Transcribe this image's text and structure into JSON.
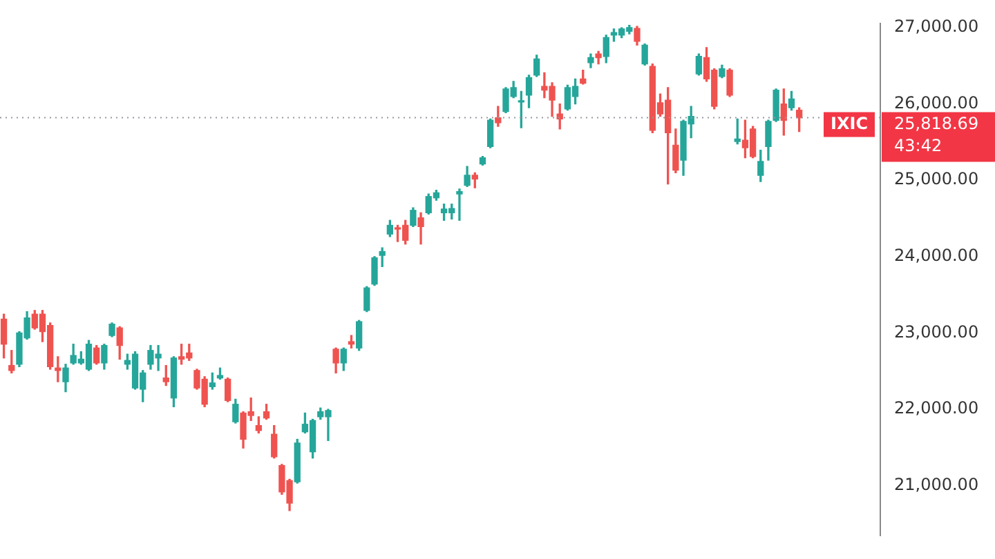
{
  "chart_data": {
    "type": "candlestick",
    "categories": [
      null,
      null,
      null,
      null,
      null,
      null,
      null,
      null,
      null,
      null,
      null,
      null,
      null,
      null,
      null,
      null,
      null,
      null,
      null,
      null,
      null,
      null,
      null,
      null,
      null,
      null,
      null,
      null,
      null,
      null,
      null,
      null,
      null,
      null,
      null,
      null,
      null,
      null,
      null,
      null,
      null,
      null,
      null,
      null,
      null,
      null,
      null,
      null,
      null,
      null,
      null,
      null,
      null,
      null,
      null,
      null,
      null,
      null,
      null,
      null,
      null,
      null,
      null,
      null,
      null,
      null,
      null,
      null,
      null,
      null,
      null,
      null,
      null,
      null,
      null,
      null,
      null,
      null,
      null,
      null,
      null,
      null,
      null,
      null,
      null,
      null,
      null,
      null,
      null,
      null,
      null,
      null,
      null,
      null,
      null,
      null,
      null,
      null,
      null,
      null,
      null,
      null,
      null,
      null,
      null,
      null,
      null,
      null,
      null,
      null,
      null,
      null,
      null,
      null
    ],
    "ohlc": [
      [
        23181,
        23246,
        22672,
        22853
      ],
      [
        22574,
        22771,
        22476,
        22508
      ],
      [
        22590,
        23017,
        22558,
        23000
      ],
      [
        22935,
        23279,
        22918,
        23197
      ],
      [
        23246,
        23295,
        23049,
        23066
      ],
      [
        23246,
        23295,
        22886,
        23017
      ],
      [
        23098,
        23131,
        22525,
        22558
      ],
      [
        22541,
        22689,
        22361,
        22508
      ],
      [
        22361,
        22590,
        22230,
        22541
      ],
      [
        22607,
        22853,
        22590,
        22705
      ],
      [
        22607,
        22754,
        22590,
        22656
      ],
      [
        22525,
        22902,
        22508,
        22853
      ],
      [
        22803,
        22836,
        22590,
        22607
      ],
      [
        22607,
        22853,
        22525,
        22836
      ],
      [
        22967,
        23131,
        22951,
        23115
      ],
      [
        23066,
        23082,
        22656,
        22836
      ],
      [
        22590,
        22722,
        22525,
        22640
      ],
      [
        22279,
        22754,
        22263,
        22722
      ],
      [
        22263,
        22508,
        22099,
        22476
      ],
      [
        22590,
        22836,
        22525,
        22771
      ],
      [
        22672,
        22836,
        22508,
        22722
      ],
      [
        22410,
        22574,
        22312,
        22361
      ],
      [
        22148,
        22689,
        22033,
        22672
      ],
      [
        22689,
        22853,
        22590,
        22656
      ],
      [
        22738,
        22853,
        22640,
        22672
      ],
      [
        22508,
        22525,
        22263,
        22279
      ],
      [
        22394,
        22427,
        22033,
        22066
      ],
      [
        22296,
        22476,
        22263,
        22345
      ],
      [
        22410,
        22541,
        22394,
        22443
      ],
      [
        22394,
        22410,
        22099,
        22115
      ],
      [
        21837,
        22132,
        21820,
        22066
      ],
      [
        21951,
        21968,
        21492,
        21607
      ],
      [
        21968,
        22148,
        21853,
        21919
      ],
      [
        21787,
        21902,
        21689,
        21722
      ],
      [
        21968,
        22066,
        21869,
        21886
      ],
      [
        21673,
        21787,
        21361,
        21378
      ],
      [
        21263,
        21279,
        20886,
        20918
      ],
      [
        21066,
        21083,
        20673,
        20771
      ],
      [
        21050,
        21607,
        21033,
        21558
      ],
      [
        21705,
        21951,
        21689,
        21804
      ],
      [
        21443,
        21869,
        21361,
        21853
      ],
      [
        21902,
        22017,
        21869,
        21968
      ],
      [
        21902,
        22000,
        21591,
        21984
      ],
      [
        22787,
        22803,
        22476,
        22607
      ],
      [
        22607,
        22803,
        22508,
        22787
      ],
      [
        22886,
        22967,
        22803,
        22853
      ],
      [
        22803,
        23164,
        22771,
        23148
      ],
      [
        23295,
        23607,
        23279,
        23590
      ],
      [
        23640,
        24000,
        23623,
        23984
      ],
      [
        24016,
        24115,
        23869,
        24066
      ],
      [
        24295,
        24475,
        24262,
        24410
      ],
      [
        24377,
        24410,
        24197,
        24360
      ],
      [
        24410,
        24475,
        24164,
        24213
      ],
      [
        24410,
        24639,
        24393,
        24606
      ],
      [
        24508,
        24574,
        24164,
        24393
      ],
      [
        24574,
        24820,
        24557,
        24787
      ],
      [
        24770,
        24869,
        24738,
        24836
      ],
      [
        24574,
        24688,
        24475,
        24623
      ],
      [
        24574,
        24688,
        24492,
        24630
      ],
      [
        24820,
        24885,
        24475,
        24852
      ],
      [
        24934,
        25180,
        24918,
        25065
      ],
      [
        25065,
        25098,
        24901,
        25016
      ],
      [
        25213,
        25311,
        25197,
        25295
      ],
      [
        25442,
        25803,
        25426,
        25786
      ],
      [
        25819,
        25967,
        25705,
        25754
      ],
      [
        25901,
        26213,
        25885,
        26196
      ],
      [
        26098,
        26295,
        26082,
        26213
      ],
      [
        26024,
        26164,
        25688,
        26032
      ],
      [
        26114,
        26377,
        25950,
        26344
      ],
      [
        26377,
        26639,
        26360,
        26590
      ],
      [
        26229,
        26409,
        26082,
        26180
      ],
      [
        26229,
        26278,
        25836,
        26049
      ],
      [
        25868,
        26000,
        25672,
        25803
      ],
      [
        25934,
        26245,
        25918,
        26213
      ],
      [
        26098,
        26327,
        26000,
        26229
      ],
      [
        26327,
        26442,
        26260,
        26270
      ],
      [
        26540,
        26655,
        26475,
        26606
      ],
      [
        26655,
        26688,
        26524,
        26606
      ],
      [
        26622,
        26901,
        26540,
        26868
      ],
      [
        26901,
        26983,
        26819,
        26934
      ],
      [
        26901,
        26999,
        26868,
        26983
      ],
      [
        26950,
        27030,
        26917,
        27000
      ],
      [
        26990,
        27016,
        26770,
        26819
      ],
      [
        26524,
        26786,
        26508,
        26770
      ],
      [
        26491,
        26524,
        25623,
        25655
      ],
      [
        26016,
        26131,
        25836,
        25868
      ],
      [
        26049,
        26213,
        24951,
        25623
      ],
      [
        25459,
        25672,
        25098,
        25131
      ],
      [
        25262,
        25786,
        25065,
        25770
      ],
      [
        25737,
        25967,
        25557,
        25836
      ],
      [
        26393,
        26655,
        26377,
        26622
      ],
      [
        26606,
        26737,
        26295,
        26327
      ],
      [
        26442,
        26459,
        25934,
        25967
      ],
      [
        26360,
        26508,
        26344,
        26459
      ],
      [
        26442,
        26459,
        26098,
        26114
      ],
      [
        25508,
        25803,
        25475,
        25541
      ],
      [
        25524,
        25786,
        25295,
        25426
      ],
      [
        25672,
        25705,
        25295,
        25311
      ],
      [
        25065,
        25393,
        24983,
        25246
      ],
      [
        25442,
        25786,
        25262,
        25770
      ],
      [
        25786,
        26196,
        25770,
        26180
      ],
      [
        26000,
        26196,
        25590,
        25786
      ],
      [
        25950,
        26164,
        25918,
        26065
      ],
      [
        25918,
        25950,
        25639,
        25818.69
      ],
      null,
      null,
      null,
      null,
      null,
      null,
      null,
      null,
      null,
      null
    ],
    "ylim": [
      20350,
      27050
    ],
    "yticks": [
      {
        "value": 21000,
        "label": "21,000.00"
      },
      {
        "value": 22000,
        "label": "22,000.00"
      },
      {
        "value": 23000,
        "label": "23,000.00"
      },
      {
        "value": 24000,
        "label": "24,000.00"
      },
      {
        "value": 25000,
        "label": "25,000.00"
      },
      {
        "value": 26000,
        "label": "26,000.00"
      },
      {
        "value": 27000,
        "label": "27,000.00"
      }
    ],
    "tick_labels": "y",
    "grid": false,
    "legend": false,
    "ref_lines": [
      {
        "axis": "y",
        "value": 25818.69,
        "label": "IXIC",
        "color": "#9598a1",
        "line_style": "dotted"
      }
    ],
    "annotations": [
      "25,818.69",
      "43:42"
    ]
  }
}
